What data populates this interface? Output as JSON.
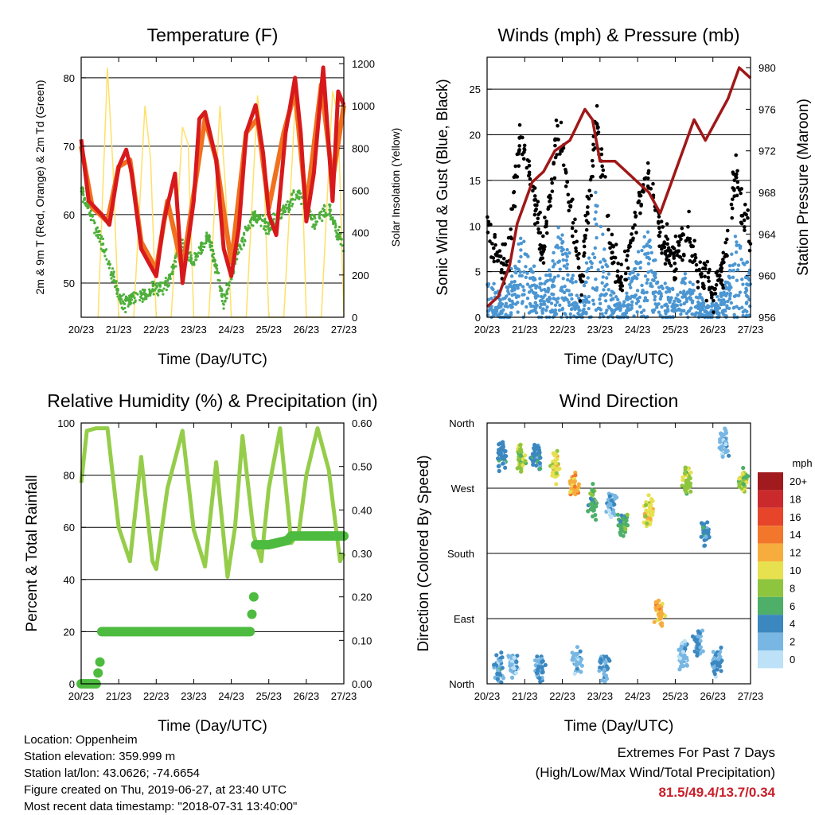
{
  "colors": {
    "t2m": "#d7191c",
    "t9m": "#f0701e",
    "td": "#4daf3a",
    "solar": "#ffe066",
    "wind": "#4b96d2",
    "gust": "#000000",
    "pressure": "#a01818",
    "rh": "#95cd4a",
    "precip": "#4dbb3f",
    "extremes": "#c8202a"
  },
  "footer": {
    "location": "Location: Oppenheim",
    "elevation": "Station elevation: 359.999 m",
    "latlon": "Station lat/lon: 43.0626; -74.6654",
    "created": "Figure created on Thu, 2019-06-27, at 23:40 UTC",
    "recent": "Most recent data timestamp: \"2018-07-31 13:40:00\""
  },
  "extremes": {
    "title": "Extremes For Past 7 Days",
    "subtitle": "(High/Low/Max Wind/Total Precipitation)",
    "values": "81.5/49.4/13.7/0.34"
  },
  "chart_data": [
    {
      "id": "temperature",
      "type": "line",
      "title": "Temperature (F)",
      "xlabel": "Time (Day/UTC)",
      "ylabel": "2m & 9m T (Red, Orange) & 2m Td (Green)",
      "y2label": "Solar Insolation (Yellow)",
      "x_ticks": [
        "20/23",
        "21/23",
        "22/23",
        "23/23",
        "24/23",
        "25/23",
        "26/23",
        "27/23"
      ],
      "ylim": [
        45,
        83
      ],
      "yticks": [
        50,
        60,
        70,
        80
      ],
      "y2lim": [
        0,
        1230
      ],
      "y2ticks": [
        0,
        200,
        400,
        600,
        800,
        1000,
        1200
      ],
      "grid": "horizontal",
      "series": [
        {
          "key": "t2m",
          "axis": "left",
          "x": [
            0,
            0.2,
            0.55,
            0.75,
            1,
            1.2,
            1.35,
            1.6,
            2,
            2.2,
            2.5,
            2.7,
            3,
            3.15,
            3.3,
            3.6,
            3.8,
            4,
            4.2,
            4.4,
            4.65,
            4.85,
            5,
            5.2,
            5.45,
            5.7,
            5.85,
            6,
            6.2,
            6.45,
            6.7,
            6.85,
            7
          ],
          "y": [
            71,
            62,
            60,
            58.5,
            67,
            69.5,
            66,
            55,
            51,
            59,
            66,
            50,
            62,
            74,
            75,
            68,
            55,
            51,
            58,
            72,
            76,
            69,
            60,
            57,
            72,
            80,
            72,
            59,
            66,
            81.5,
            62,
            78,
            76
          ]
        },
        {
          "key": "t9m",
          "axis": "left",
          "x": [
            0,
            0.3,
            0.7,
            1,
            1.3,
            1.6,
            2,
            2.3,
            2.7,
            3,
            3.3,
            3.6,
            4,
            4.4,
            4.7,
            5,
            5.4,
            5.7,
            6,
            6.4,
            6.7,
            7
          ],
          "y": [
            70,
            61,
            59,
            67,
            68,
            56,
            52,
            62,
            52,
            63,
            74,
            68,
            53,
            72,
            74,
            61,
            72,
            78,
            61,
            79,
            65,
            76
          ]
        },
        {
          "key": "td",
          "axis": "left",
          "x": [
            0,
            0.25,
            0.55,
            0.9,
            1.1,
            1.5,
            1.9,
            2.3,
            2.7,
            3.0,
            3.4,
            3.8,
            4.2,
            4.6,
            5.0,
            5.4,
            5.8,
            6.2,
            6.6,
            7
          ],
          "y": [
            64,
            60,
            56,
            50,
            47,
            48,
            49,
            50,
            56,
            53,
            57,
            47,
            55,
            60,
            58,
            61,
            63,
            59,
            61,
            55
          ]
        },
        {
          "key": "solar",
          "axis": "right",
          "x": [
            0.45,
            0.7,
            0.85,
            1.0,
            1.4,
            1.7,
            1.85,
            2.0,
            2.4,
            2.7,
            2.85,
            3.0,
            3.4,
            3.7,
            3.85,
            4.0,
            4.4,
            4.7,
            4.85,
            5.0,
            5.4,
            5.7,
            5.85,
            6.0,
            6.4,
            6.7,
            6.85,
            7
          ],
          "y": [
            0,
            1180,
            700,
            0,
            0,
            1000,
            750,
            0,
            0,
            900,
            820,
            0,
            0,
            1000,
            600,
            0,
            0,
            1050,
            800,
            0,
            0,
            1000,
            900,
            0,
            0,
            1070,
            950,
            0
          ]
        }
      ]
    },
    {
      "id": "winds",
      "type": "scatter",
      "title": "Winds (mph) & Pressure (mb)",
      "xlabel": "Time (Day/UTC)",
      "ylabel": "Sonic Wind & Gust (Blue, Black)",
      "y2label": "Station Pressure (Maroon)",
      "x_ticks": [
        "20/23",
        "21/23",
        "22/23",
        "23/23",
        "24/23",
        "25/23",
        "26/23",
        "27/23"
      ],
      "ylim": [
        0,
        28.5
      ],
      "yticks": [
        0,
        5,
        10,
        15,
        20,
        25
      ],
      "y2lim": [
        956,
        981
      ],
      "y2ticks": [
        956,
        960,
        964,
        968,
        972,
        976,
        980
      ],
      "grid": "horizontal",
      "series": [
        {
          "key": "wind",
          "axis": "left",
          "x": [
            0,
            0.5,
            0.9,
            1.2,
            1.5,
            1.9,
            2.3,
            2.5,
            2.9,
            3.3,
            3.6,
            4,
            4.3,
            4.6,
            5,
            5.3,
            5.6,
            6,
            6.3,
            6.6,
            7
          ],
          "y": [
            4,
            2,
            9,
            6,
            3,
            10,
            5,
            1,
            14,
            3,
            1,
            8,
            10,
            4,
            3,
            5,
            2,
            1,
            3,
            9,
            5
          ]
        },
        {
          "key": "gust",
          "axis": "left",
          "x": [
            0,
            0.5,
            0.9,
            1.2,
            1.5,
            1.9,
            2.3,
            2.5,
            2.9,
            3.3,
            3.6,
            4,
            4.3,
            4.6,
            5,
            5.3,
            5.6,
            6,
            6.3,
            6.6,
            7
          ],
          "y": [
            9,
            5,
            20,
            14,
            7,
            21,
            10,
            4,
            22,
            7,
            4,
            12,
            16,
            9,
            6,
            10,
            5,
            3,
            6,
            16,
            8
          ]
        },
        {
          "key": "pressure",
          "axis": "right",
          "x": [
            0,
            0.3,
            0.6,
            0.8,
            1.2,
            1.5,
            1.8,
            2.2,
            2.6,
            2.8,
            3.0,
            3.4,
            3.7,
            4.0,
            4.3,
            4.6,
            4.9,
            5.2,
            5.5,
            5.8,
            6.1,
            6.4,
            6.7,
            7
          ],
          "y": [
            957,
            958,
            961,
            965,
            969,
            970,
            972,
            973,
            976,
            975,
            971,
            971,
            970,
            969,
            968,
            966,
            969,
            972,
            975,
            973,
            975,
            977,
            980,
            979
          ]
        }
      ]
    },
    {
      "id": "humidity",
      "type": "line",
      "title": "Relative Humidity (%) & Precipitation (in)",
      "xlabel": "Time (Day/UTC)",
      "ylabel": "Percent & Total Rainfall",
      "x_ticks": [
        "20/23",
        "21/23",
        "22/23",
        "23/23",
        "24/23",
        "25/23",
        "26/23",
        "27/23"
      ],
      "ylim": [
        0,
        100
      ],
      "yticks": [
        0,
        20,
        40,
        60,
        80,
        100
      ],
      "y2lim": [
        0,
        0.6
      ],
      "y2ticks": [
        0.0,
        0.1,
        0.2,
        0.3,
        0.4,
        0.5,
        0.6
      ],
      "y2tick_labels": [
        "0.00",
        "0.10",
        "0.20",
        "0.30",
        "0.40",
        "0.50",
        "0.60"
      ],
      "grid": "horizontal",
      "series": [
        {
          "key": "rh",
          "axis": "left",
          "x": [
            0,
            0.15,
            0.4,
            0.7,
            1.0,
            1.3,
            1.6,
            1.9,
            2.0,
            2.3,
            2.7,
            3.0,
            3.3,
            3.6,
            3.9,
            4.1,
            4.3,
            4.6,
            4.8,
            5.0,
            5.3,
            5.6,
            5.8,
            6.0,
            6.3,
            6.6,
            6.9,
            7
          ],
          "y": [
            77,
            97,
            98,
            98,
            60,
            47,
            87,
            47,
            44,
            75,
            97,
            59,
            45,
            85,
            41,
            60,
            95,
            57,
            47,
            75,
            98,
            54,
            58,
            80,
            98,
            82,
            47,
            50
          ]
        },
        {
          "key": "precip",
          "axis": "right",
          "x": [
            0,
            0.4,
            0.5,
            0.55,
            4.5,
            4.6,
            4.65,
            5.0,
            5.5,
            5.6,
            7
          ],
          "y": [
            0,
            0,
            0.05,
            0.12,
            0.12,
            0.2,
            0.32,
            0.32,
            0.33,
            0.34,
            0.34
          ]
        }
      ]
    },
    {
      "id": "wind_direction",
      "type": "scatter",
      "title": "Wind Direction",
      "xlabel": "Time (Day/UTC)",
      "ylabel": "Direction (Colored By Speed)",
      "x_ticks": [
        "20/23",
        "21/23",
        "22/23",
        "23/23",
        "24/23",
        "25/23",
        "26/23",
        "27/23"
      ],
      "ytick_labels": [
        "North",
        "East",
        "South",
        "West",
        "North"
      ],
      "ylim": [
        0,
        360
      ],
      "grid": "horizontal",
      "colorbar": {
        "unit": "mph",
        "labels": [
          "20+",
          "18",
          "16",
          "14",
          "12",
          "10",
          "8",
          "6",
          "4",
          "2",
          "0"
        ],
        "colors": [
          "#a11a1e",
          "#cb2a2d",
          "#e6452a",
          "#f2772c",
          "#f7ad3d",
          "#e7e04f",
          "#8ec53e",
          "#4daf68",
          "#3b87c0",
          "#78b7e3",
          "#bde1f6"
        ]
      },
      "series": [
        {
          "name": "clusters",
          "x": [
            0.4,
            0.9,
            1.3,
            1.8,
            2.3,
            2.8,
            3.3,
            3.6,
            4.3,
            4.6,
            5.3,
            5.8,
            6.3,
            6.8,
            0.3,
            0.7,
            1.4,
            2.4,
            3.1,
            5.2,
            5.6,
            6.1
          ],
          "y": [
            320,
            310,
            315,
            300,
            275,
            250,
            250,
            220,
            240,
            100,
            280,
            210,
            330,
            280,
            20,
            30,
            20,
            30,
            20,
            40,
            60,
            30
          ],
          "speed": [
            4,
            8,
            4,
            10,
            12,
            6,
            2,
            6,
            10,
            12,
            8,
            4,
            2,
            8,
            3,
            2,
            3,
            2,
            3,
            2,
            3,
            3
          ]
        }
      ]
    }
  ]
}
